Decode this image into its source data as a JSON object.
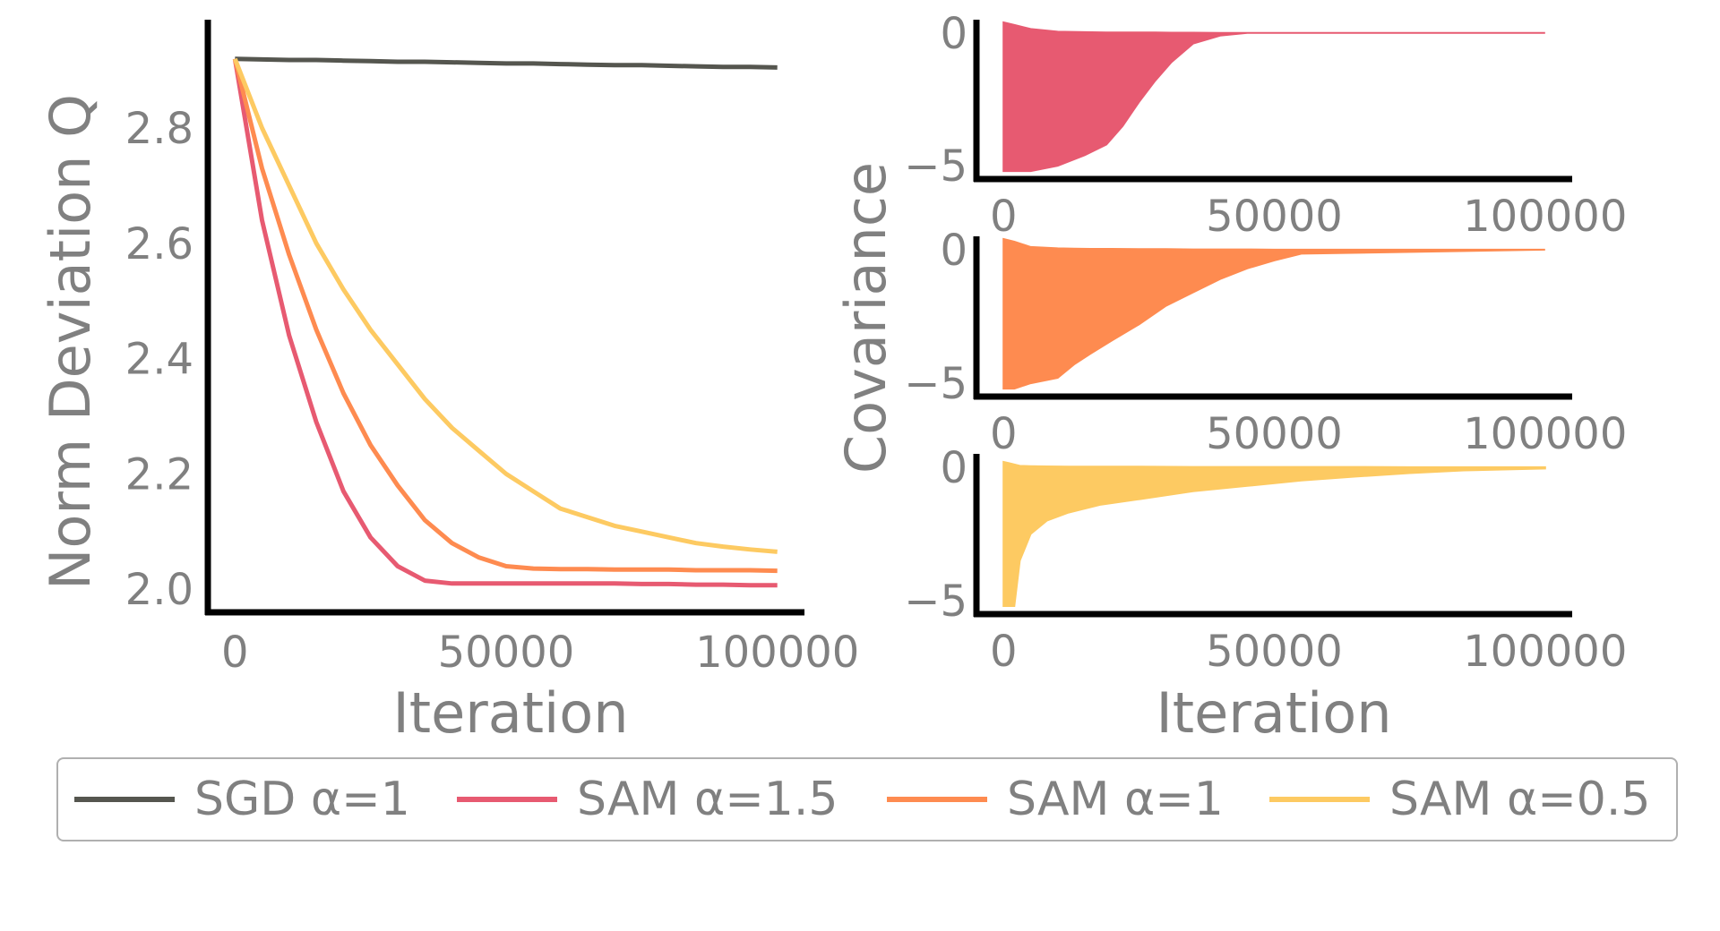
{
  "colors": {
    "sgd": "#55564f",
    "sam15": "#e75a71",
    "sam1": "#fe8b50",
    "sam05": "#fdca62",
    "axis": "#000000",
    "text": "#808080"
  },
  "legend": [
    {
      "label": "SGD α=1",
      "color_key": "sgd"
    },
    {
      "label": "SAM α=1.5",
      "color_key": "sam15"
    },
    {
      "label": "SAM α=1",
      "color_key": "sam1"
    },
    {
      "label": "SAM α=0.5",
      "color_key": "sam05"
    }
  ],
  "chart_data": [
    {
      "type": "line",
      "xlabel": "Iteration",
      "ylabel": "Norm Deviation Q",
      "xlim": [
        -5000,
        105000
      ],
      "ylim": [
        1.96,
        2.96
      ],
      "xticks": [
        0,
        50000,
        100000
      ],
      "yticks": [
        2.0,
        2.2,
        2.4,
        2.6,
        2.8
      ],
      "yticklabels": [
        "2.0",
        "2.2",
        "2.4",
        "2.6",
        "2.8"
      ],
      "x": [
        0,
        5000,
        10000,
        15000,
        20000,
        25000,
        30000,
        35000,
        40000,
        45000,
        50000,
        55000,
        60000,
        65000,
        70000,
        75000,
        80000,
        85000,
        90000,
        95000,
        100000
      ],
      "series": [
        {
          "name": "SGD α=1",
          "color_key": "sgd",
          "values": [
            2.92,
            2.919,
            2.918,
            2.918,
            2.917,
            2.916,
            2.915,
            2.915,
            2.914,
            2.913,
            2.912,
            2.912,
            2.911,
            2.91,
            2.909,
            2.909,
            2.908,
            2.907,
            2.906,
            2.906,
            2.905
          ]
        },
        {
          "name": "SAM α=1.5",
          "color_key": "sam15",
          "values": [
            2.92,
            2.64,
            2.44,
            2.29,
            2.17,
            2.09,
            2.04,
            2.015,
            2.01,
            2.01,
            2.01,
            2.01,
            2.01,
            2.01,
            2.01,
            2.009,
            2.009,
            2.008,
            2.008,
            2.007,
            2.007
          ]
        },
        {
          "name": "SAM α=1",
          "color_key": "sam1",
          "values": [
            2.92,
            2.73,
            2.58,
            2.45,
            2.34,
            2.25,
            2.18,
            2.12,
            2.08,
            2.055,
            2.04,
            2.036,
            2.035,
            2.035,
            2.034,
            2.034,
            2.034,
            2.033,
            2.033,
            2.033,
            2.032
          ]
        },
        {
          "name": "SAM α=0.5",
          "color_key": "sam05",
          "values": [
            2.92,
            2.8,
            2.7,
            2.6,
            2.52,
            2.45,
            2.39,
            2.33,
            2.28,
            2.24,
            2.2,
            2.17,
            2.14,
            2.125,
            2.11,
            2.1,
            2.09,
            2.08,
            2.074,
            2.069,
            2.065
          ]
        }
      ]
    },
    {
      "type": "area",
      "ylabel": "Covariance",
      "xlabel": "Iteration",
      "xlim": [
        -5000,
        105000
      ],
      "ylim": [
        -5.5,
        0.5
      ],
      "xticks": [
        0,
        50000,
        100000
      ],
      "yticks": [
        -5,
        0
      ],
      "yticklabels": [
        "−5",
        "0"
      ],
      "panels": [
        {
          "name": "SAM α=1.5",
          "color_key": "sam15",
          "x": [
            0,
            2000,
            5000,
            10000,
            15000,
            19000,
            22000,
            25000,
            28000,
            31000,
            35000,
            40000,
            45000,
            100000
          ],
          "lower": [
            -5.2,
            -5.2,
            -5.2,
            -5.0,
            -4.6,
            -4.2,
            -3.5,
            -2.6,
            -1.8,
            -1.1,
            -0.4,
            -0.1,
            0,
            0
          ],
          "upper": [
            0.4,
            0.3,
            0.15,
            0.05,
            0.03,
            0.02,
            0.02,
            0.02,
            0.02,
            0.01,
            0.01,
            0,
            0,
            0
          ]
        },
        {
          "name": "SAM α=1",
          "color_key": "sam1",
          "x": [
            0,
            2000,
            5000,
            10000,
            13000,
            16000,
            20000,
            25000,
            30000,
            35000,
            40000,
            45000,
            50000,
            55000,
            100000
          ],
          "lower": [
            -5.2,
            -5.2,
            -5.0,
            -4.8,
            -4.3,
            -3.9,
            -3.4,
            -2.8,
            -2.1,
            -1.6,
            -1.1,
            -0.7,
            -0.4,
            -0.15,
            0
          ],
          "upper": [
            0.4,
            0.3,
            0.1,
            0.05,
            0.04,
            0.03,
            0.03,
            0.02,
            0.02,
            0.01,
            0.01,
            0.01,
            0,
            0,
            0
          ]
        },
        {
          "name": "SAM α=0.5",
          "color_key": "sam05",
          "x": [
            0,
            1000,
            2000,
            3000,
            5000,
            8000,
            12000,
            18000,
            25000,
            35000,
            45000,
            55000,
            65000,
            75000,
            85000,
            100000
          ],
          "lower": [
            -5.2,
            -5.2,
            -5.2,
            -3.5,
            -2.5,
            -2.0,
            -1.7,
            -1.4,
            -1.2,
            -0.9,
            -0.7,
            -0.5,
            -0.35,
            -0.22,
            -0.12,
            -0.05
          ],
          "upper": [
            0.2,
            0.15,
            0.1,
            0.05,
            0.04,
            0.03,
            0.02,
            0.02,
            0.02,
            0.01,
            0.01,
            0.01,
            0.01,
            0,
            0,
            0
          ]
        }
      ]
    }
  ]
}
